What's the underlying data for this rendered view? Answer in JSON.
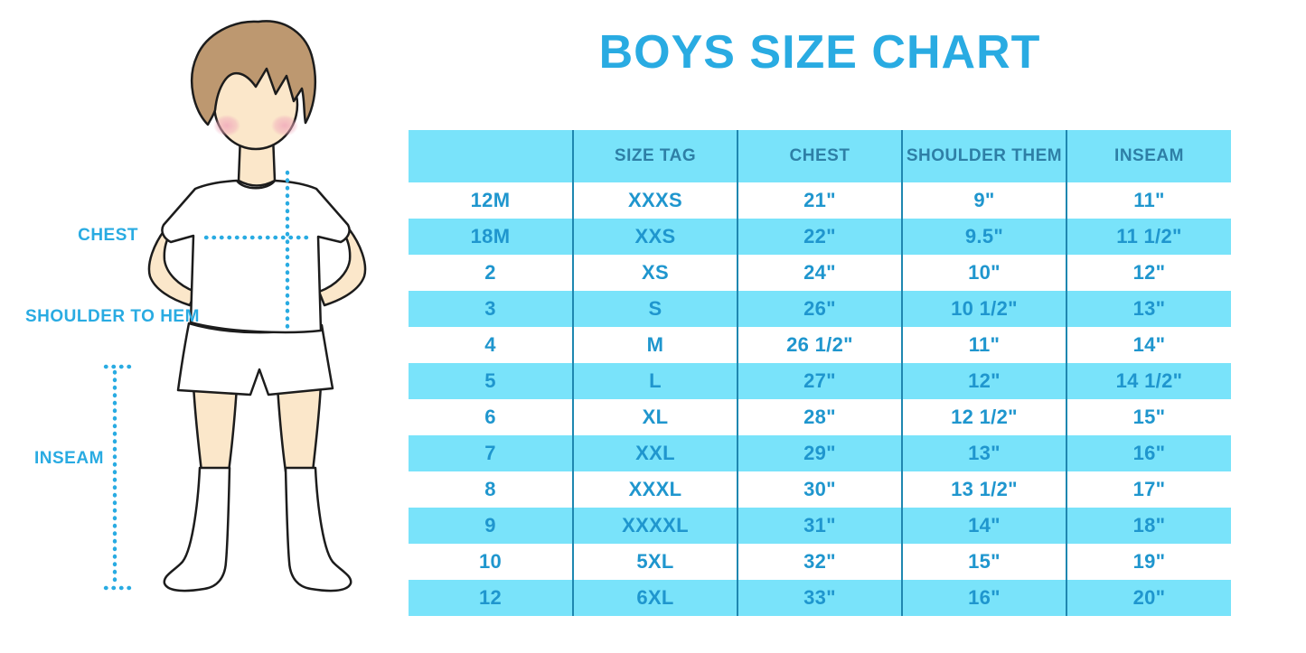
{
  "title": "BOYS SIZE CHART",
  "figure": {
    "labels": {
      "chest": "CHEST",
      "shoulder_to_hem": "SHOULDER TO HEM",
      "inseam": "INSEAM"
    }
  },
  "chart_data": {
    "type": "table",
    "title": "BOYS SIZE CHART",
    "columns": [
      "",
      "SIZE TAG",
      "CHEST",
      "SHOULDER THEM",
      "INSEAM"
    ],
    "rows": [
      [
        "12M",
        "XXXS",
        "21\"",
        "9\"",
        "11\""
      ],
      [
        "18M",
        "XXS",
        "22\"",
        "9.5\"",
        "11 1/2\""
      ],
      [
        "2",
        "XS",
        "24\"",
        "10\"",
        "12\""
      ],
      [
        "3",
        "S",
        "26\"",
        "10 1/2\"",
        "13\""
      ],
      [
        "4",
        "M",
        "26 1/2\"",
        "11\"",
        "14\""
      ],
      [
        "5",
        "L",
        "27\"",
        "12\"",
        "14 1/2\""
      ],
      [
        "6",
        "XL",
        "28\"",
        "12 1/2\"",
        "15\""
      ],
      [
        "7",
        "XXL",
        "29\"",
        "13\"",
        "16\""
      ],
      [
        "8",
        "XXXL",
        "30\"",
        "13 1/2\"",
        "17\""
      ],
      [
        "9",
        "XXXXL",
        "31\"",
        "14\"",
        "18\""
      ],
      [
        "10",
        "5XL",
        "32\"",
        "15\"",
        "19\""
      ],
      [
        "12",
        "6XL",
        "33\"",
        "16\"",
        "20\""
      ]
    ],
    "layout": {
      "alternating_row_color": "every second row cyan",
      "header_background": "cyan"
    }
  },
  "colors": {
    "title_blue": "#29ABE2",
    "header_text": "#2E7FA6",
    "body_text": "#1F96CE",
    "row_cyan": "#79E3FA",
    "divider": "#1F87B0",
    "dotted_line": "#29ABE2",
    "hair": "#BD9870",
    "skin": "#FBE7CA",
    "blush": "#F2B8C4"
  }
}
